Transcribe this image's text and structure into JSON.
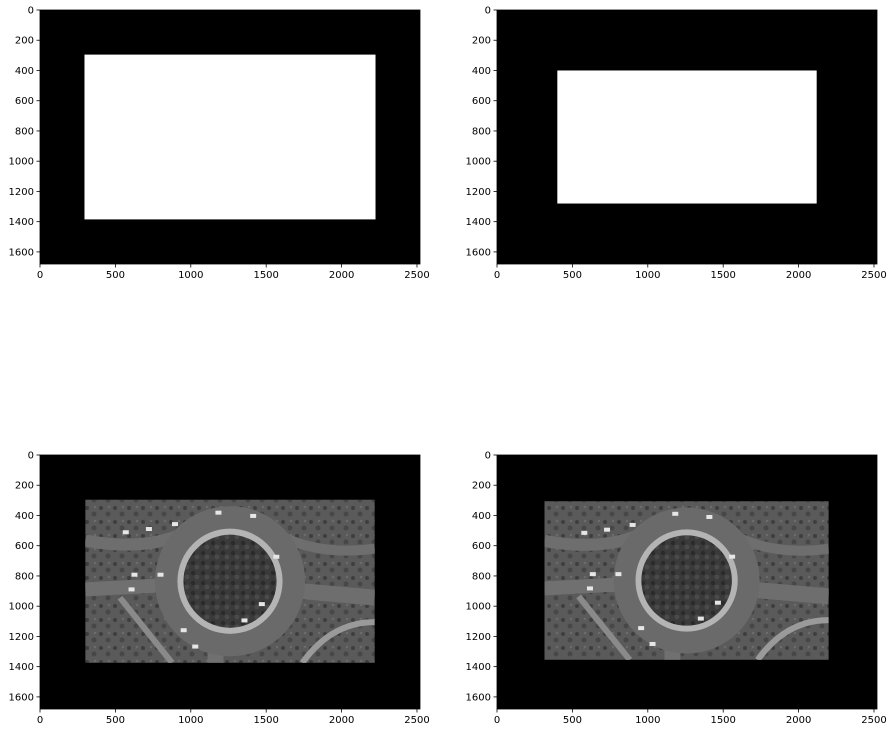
{
  "chart_data": [
    {
      "type": "image",
      "content": "binary-mask",
      "xlim": [
        0,
        2520
      ],
      "ylim": [
        1680,
        0
      ],
      "xticks": [
        0,
        500,
        1000,
        1500,
        2000,
        2500
      ],
      "yticks": [
        0,
        200,
        400,
        600,
        800,
        1000,
        1200,
        1400,
        1600
      ],
      "background_color": "#000000",
      "foreground_color": "#ffffff",
      "region": {
        "x0": 295,
        "x1": 2225,
        "y0": 295,
        "y1": 1385
      }
    },
    {
      "type": "image",
      "content": "binary-mask",
      "xlim": [
        0,
        2520
      ],
      "ylim": [
        1680,
        0
      ],
      "xticks": [
        0,
        500,
        1000,
        1500,
        2000,
        2500
      ],
      "yticks": [
        0,
        200,
        400,
        600,
        800,
        1000,
        1200,
        1400,
        1600
      ],
      "background_color": "#000000",
      "foreground_color": "#ffffff",
      "region": {
        "x0": 400,
        "x1": 2120,
        "y0": 400,
        "y1": 1280
      }
    },
    {
      "type": "image",
      "content": "aerial-photo-roundabout-grayscale",
      "xlim": [
        0,
        2520
      ],
      "ylim": [
        1680,
        0
      ],
      "xticks": [
        0,
        500,
        1000,
        1500,
        2000,
        2500
      ],
      "yticks": [
        0,
        200,
        400,
        600,
        800,
        1000,
        1200,
        1400,
        1600
      ],
      "background_color": "#000000",
      "region": {
        "x0": 300,
        "x1": 2220,
        "y0": 295,
        "y1": 1375
      }
    },
    {
      "type": "image",
      "content": "aerial-photo-roundabout-grayscale",
      "xlim": [
        0,
        2520
      ],
      "ylim": [
        1680,
        0
      ],
      "xticks": [
        0,
        500,
        1000,
        1500,
        2000,
        2500
      ],
      "yticks": [
        0,
        200,
        400,
        600,
        800,
        1000,
        1200,
        1400,
        1600
      ],
      "background_color": "#000000",
      "region": {
        "x0": 315,
        "x1": 2200,
        "y0": 305,
        "y1": 1355
      }
    }
  ]
}
